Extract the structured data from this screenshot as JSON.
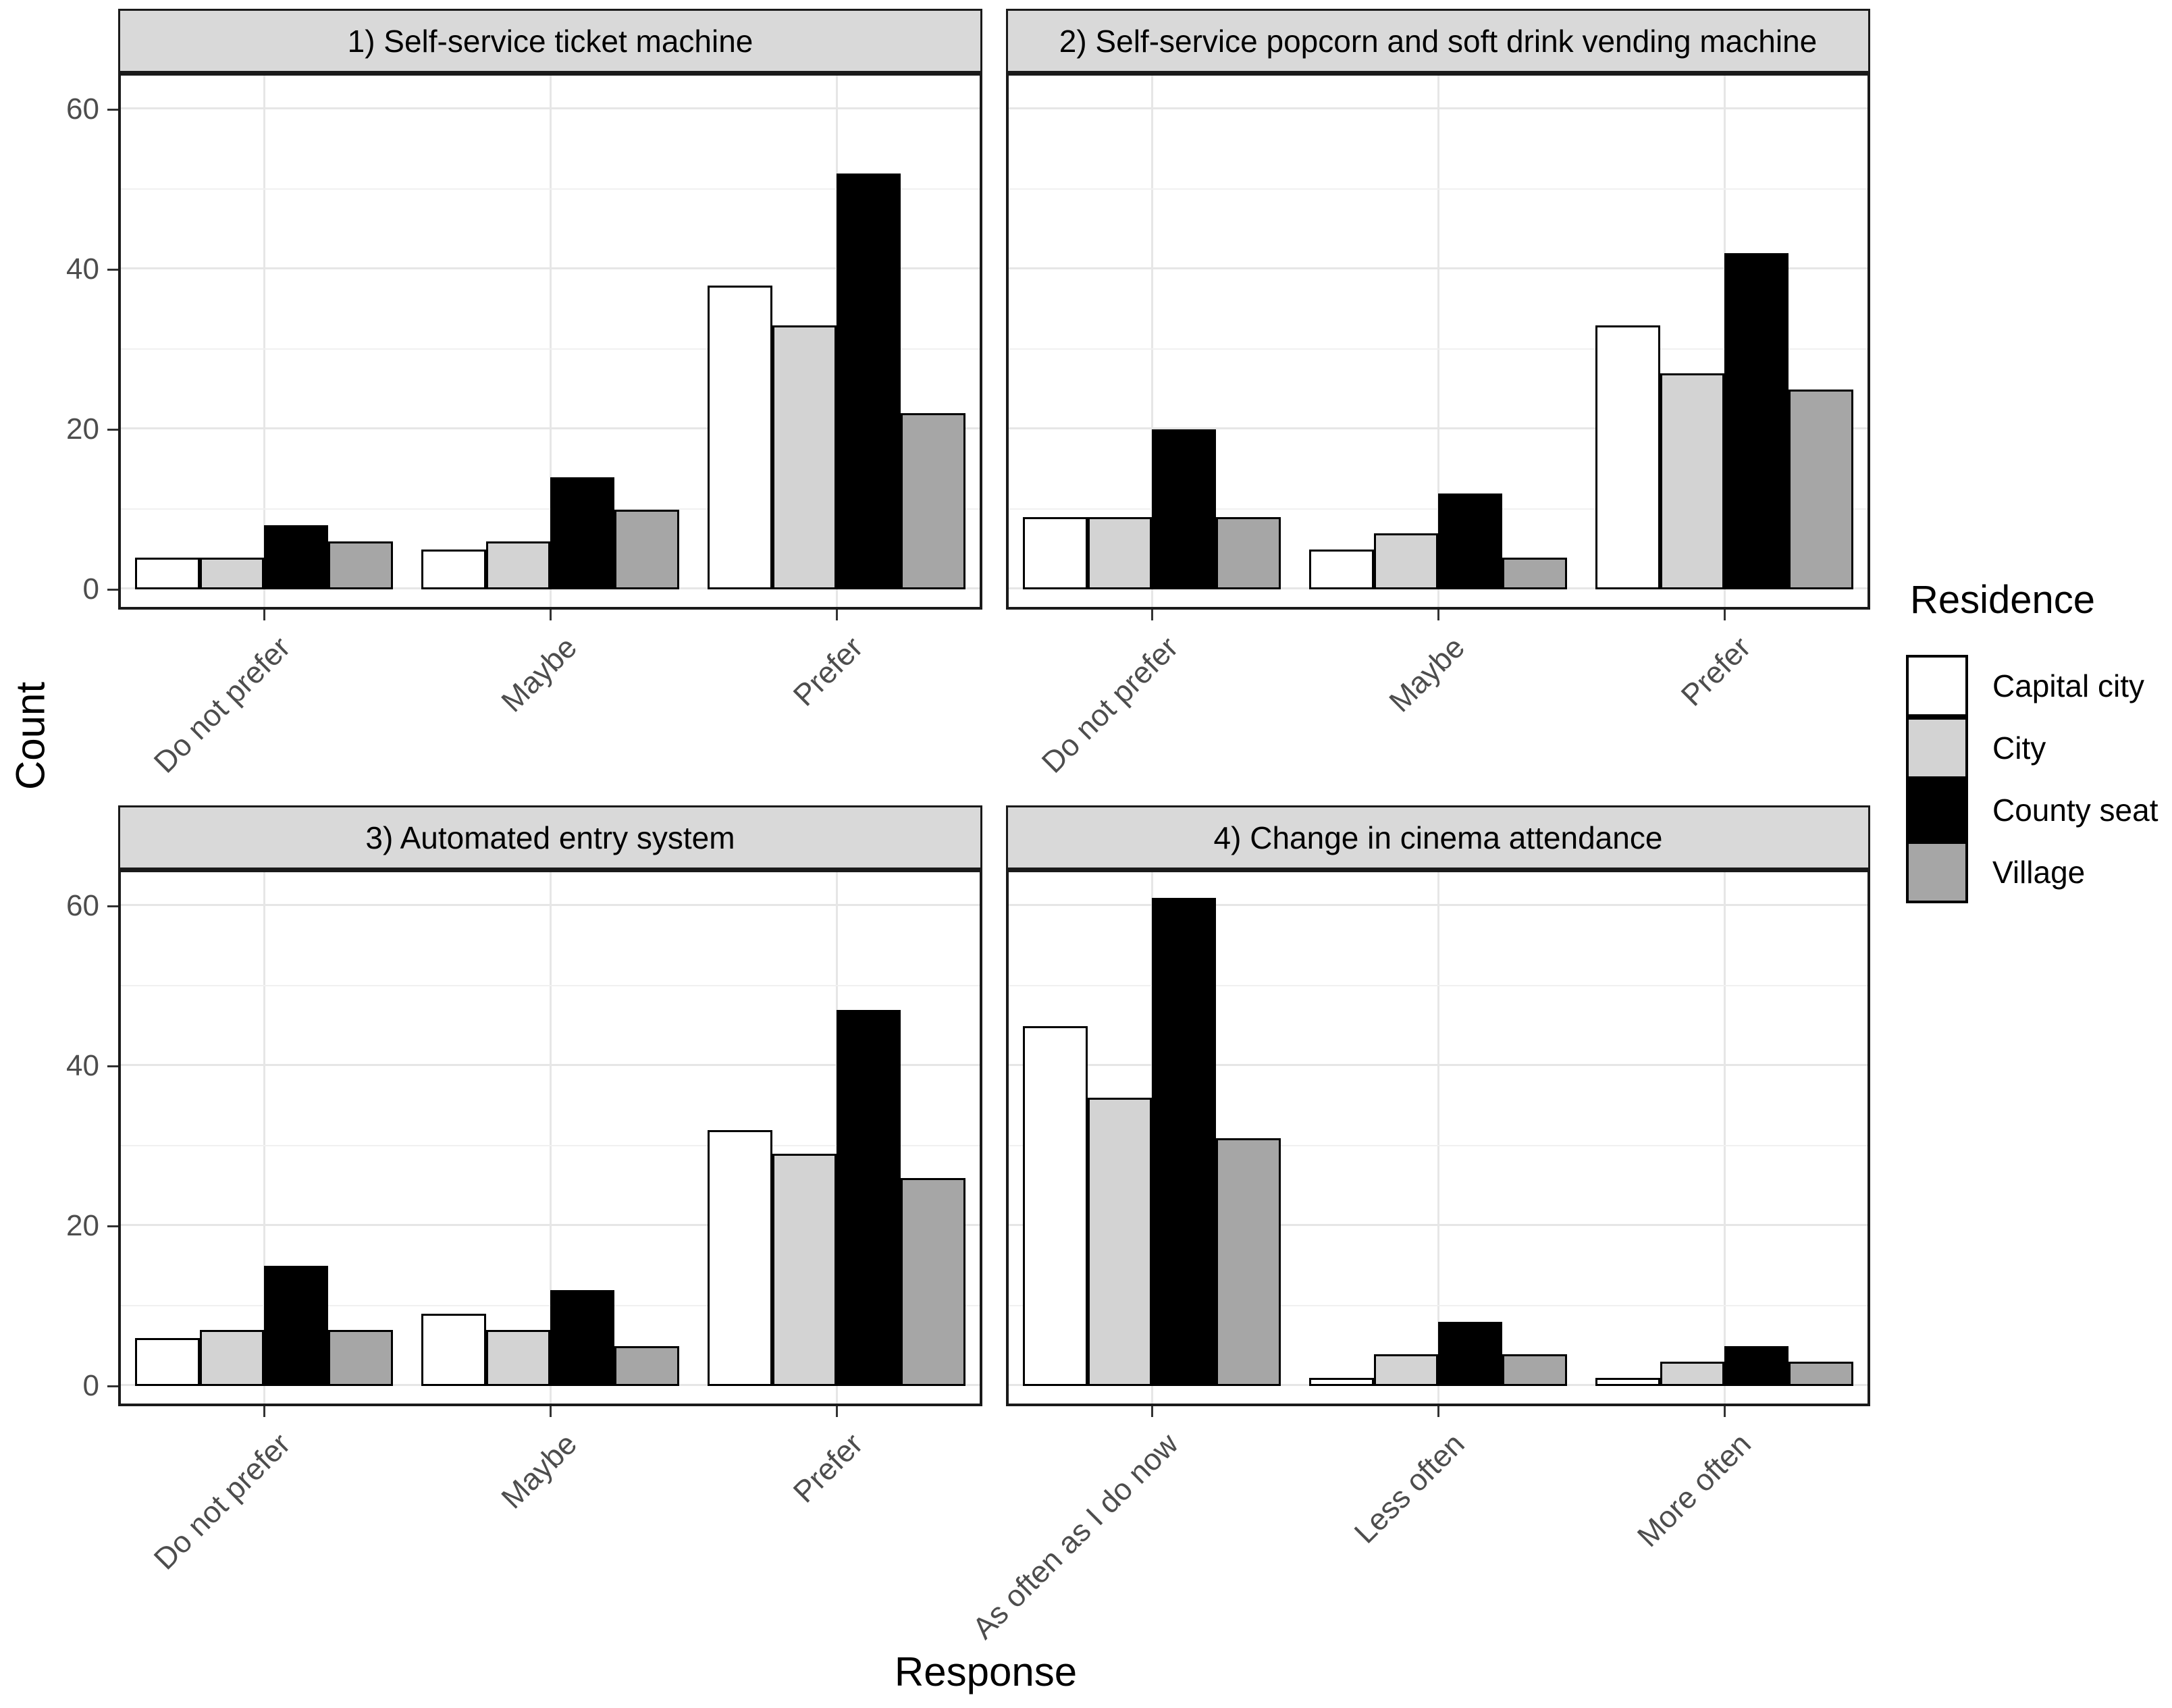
{
  "chart_data": {
    "type": "bar",
    "xlabel": "Response",
    "ylabel": "Count",
    "ylim": [
      0,
      64
    ],
    "yticks": [
      0,
      20,
      40,
      60
    ],
    "yticks_minor": [
      10,
      30,
      50
    ],
    "grid": "on",
    "legend": {
      "title": "Residence",
      "position": "right",
      "entries": [
        {
          "label": "Capital city",
          "color": "#FFFFFF"
        },
        {
          "label": "City",
          "color": "#D3D3D3"
        },
        {
          "label": "County seat",
          "color": "#000000"
        },
        {
          "label": "Village",
          "color": "#A6A6A6"
        }
      ]
    },
    "facets": [
      {
        "title": "1) Self-service ticket machine",
        "categories": [
          "Do not prefer",
          "Maybe",
          "Prefer"
        ],
        "series": [
          {
            "name": "Capital city",
            "values": [
              4,
              5,
              38
            ]
          },
          {
            "name": "City",
            "values": [
              4,
              6,
              33
            ]
          },
          {
            "name": "County seat",
            "values": [
              8,
              14,
              52
            ]
          },
          {
            "name": "Village",
            "values": [
              6,
              10,
              22
            ]
          }
        ]
      },
      {
        "title": "2) Self-service popcorn and soft drink vending machine",
        "categories": [
          "Do not prefer",
          "Maybe",
          "Prefer"
        ],
        "series": [
          {
            "name": "Capital city",
            "values": [
              9,
              5,
              33
            ]
          },
          {
            "name": "City",
            "values": [
              9,
              7,
              27
            ]
          },
          {
            "name": "County seat",
            "values": [
              20,
              12,
              42
            ]
          },
          {
            "name": "Village",
            "values": [
              9,
              4,
              25
            ]
          }
        ]
      },
      {
        "title": "3) Automated entry system",
        "categories": [
          "Do not prefer",
          "Maybe",
          "Prefer"
        ],
        "series": [
          {
            "name": "Capital city",
            "values": [
              6,
              9,
              32
            ]
          },
          {
            "name": "City",
            "values": [
              7,
              7,
              29
            ]
          },
          {
            "name": "County seat",
            "values": [
              15,
              12,
              47
            ]
          },
          {
            "name": "Village",
            "values": [
              7,
              5,
              26
            ]
          }
        ]
      },
      {
        "title": "4) Change in cinema attendance",
        "categories": [
          "As often as I do now",
          "Less often",
          "More often"
        ],
        "series": [
          {
            "name": "Capital city",
            "values": [
              45,
              1,
              1
            ]
          },
          {
            "name": "City",
            "values": [
              36,
              4,
              3
            ]
          },
          {
            "name": "County seat",
            "values": [
              61,
              8,
              5
            ]
          },
          {
            "name": "Village",
            "values": [
              31,
              4,
              3
            ]
          }
        ]
      }
    ]
  },
  "theme": {
    "strip_bg": "#D9D9D9",
    "panel_border": "#1A1A1A",
    "grid_major": "#E6E6E6",
    "grid_minor": "#F0F0F0",
    "tick_color": "#333333",
    "tick_label_color": "#4D4D4D",
    "bar_outline": "#000000"
  }
}
